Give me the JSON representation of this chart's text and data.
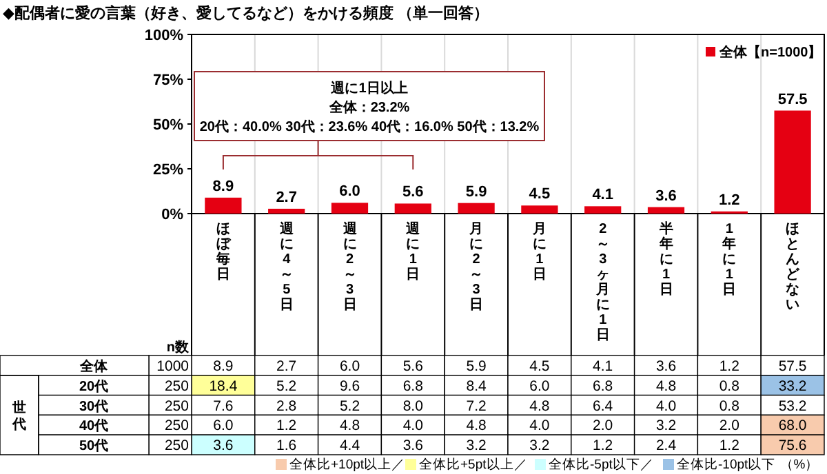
{
  "chart_data": [
    {
      "type": "bar",
      "title": "◆配偶者に愛の言葉（好き、愛してるなど）をかける頻度 （単一回答）",
      "categories": [
        "ほぼ毎日",
        "週に4～5日",
        "週に2～3日",
        "週に1日",
        "月に2～3日",
        "月に1日",
        "2～3ヶ月に1日",
        "半年に1日",
        "1年に1日",
        "ほとんどない"
      ],
      "series": [
        {
          "name": "全体【n=1000】",
          "color": "#e50012",
          "values": [
            8.9,
            2.7,
            6.0,
            5.6,
            5.9,
            4.5,
            4.1,
            3.6,
            1.2,
            57.5
          ],
          "value_labels": [
            "8.9",
            "2.7",
            "6.0",
            "5.6",
            "5.9",
            "4.5",
            "4.1",
            "3.6",
            "1.2",
            "57.5"
          ]
        }
      ],
      "ylim": [
        0,
        100
      ],
      "yticks": [
        {
          "value": 0,
          "label": "0%"
        },
        {
          "value": 25,
          "label": "25%"
        },
        {
          "value": 50,
          "label": "50%"
        },
        {
          "value": 75,
          "label": "75%"
        },
        {
          "value": 100,
          "label": "100%"
        }
      ],
      "legend": "top right",
      "grid": "x",
      "annotations": [
        "週に1日以上",
        "全体：23.2%",
        "20代：40.0% 30代：23.6% 40代：16.0% 50代：13.2%"
      ]
    },
    {
      "type": "heatmap",
      "categories": [
        null,
        null,
        null,
        null,
        null,
        null,
        null,
        null,
        null,
        null
      ],
      "y_categories": [
        "全体",
        "20代",
        "30代",
        "40代",
        "50代"
      ],
      "cells": [
        [
          8.9,
          2.7,
          6.0,
          5.6,
          5.9,
          4.5,
          4.1,
          3.6,
          1.2,
          57.5
        ],
        [
          18.4,
          5.2,
          9.6,
          6.8,
          8.4,
          6.0,
          6.8,
          4.8,
          0.8,
          33.2
        ],
        [
          7.6,
          2.8,
          5.2,
          8.0,
          7.2,
          4.8,
          6.4,
          4.0,
          0.8,
          53.2
        ],
        [
          6.0,
          1.2,
          4.8,
          4.0,
          4.8,
          4.0,
          2.0,
          3.2,
          2.0,
          68.0
        ],
        [
          3.6,
          1.6,
          4.4,
          3.6,
          3.2,
          3.2,
          1.2,
          2.4,
          1.2,
          75.6
        ]
      ],
      "cell_labels": [
        [
          "8.9",
          "2.7",
          "6.0",
          "5.6",
          "5.9",
          "4.5",
          "4.1",
          "3.6",
          "1.2",
          "57.5"
        ],
        [
          "18.4",
          "5.2",
          "9.6",
          "6.8",
          "8.4",
          "6.0",
          "6.8",
          "4.8",
          "0.8",
          "33.2"
        ],
        [
          "7.6",
          "2.8",
          "5.2",
          "8.0",
          "7.2",
          "4.8",
          "6.4",
          "4.0",
          "0.8",
          "53.2"
        ],
        [
          "6.0",
          "1.2",
          "4.8",
          "4.0",
          "4.8",
          "4.0",
          "2.0",
          "3.2",
          "2.0",
          "68.0"
        ],
        [
          "3.6",
          "1.6",
          "4.4",
          "3.6",
          "3.2",
          "3.2",
          "1.2",
          "2.4",
          "1.2",
          "75.6"
        ]
      ],
      "annotations": [
        "n数",
        "1000",
        "250",
        "250",
        "250",
        "250",
        "世代",
        "全体比+10pt以上／",
        "全体比+5pt以上／",
        "全体比-5pt以下／",
        "全体比-10pt以下",
        "（%）"
      ]
    }
  ]
}
